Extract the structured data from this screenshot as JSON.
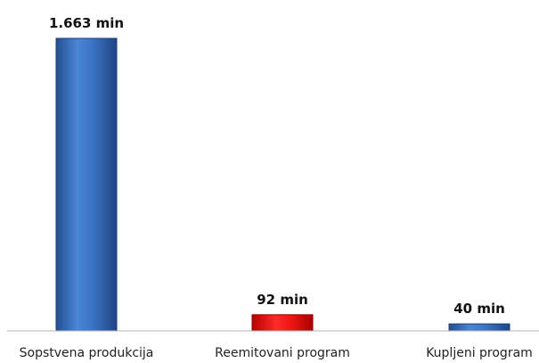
{
  "chart_data": {
    "type": "bar",
    "categories": [
      "Sopstvena produkcija",
      "Reemitovani program",
      "Kupljeni program"
    ],
    "values": [
      1663,
      92,
      40
    ],
    "data_labels": [
      "1.663 min",
      "92 min",
      "40 min"
    ],
    "colors": [
      "#3a6fc0",
      "#dd1111",
      "#3a6fc0"
    ],
    "title": "",
    "xlabel": "",
    "ylabel": "",
    "ylim": [
      0,
      1663
    ],
    "grid": false,
    "legend": "none"
  }
}
